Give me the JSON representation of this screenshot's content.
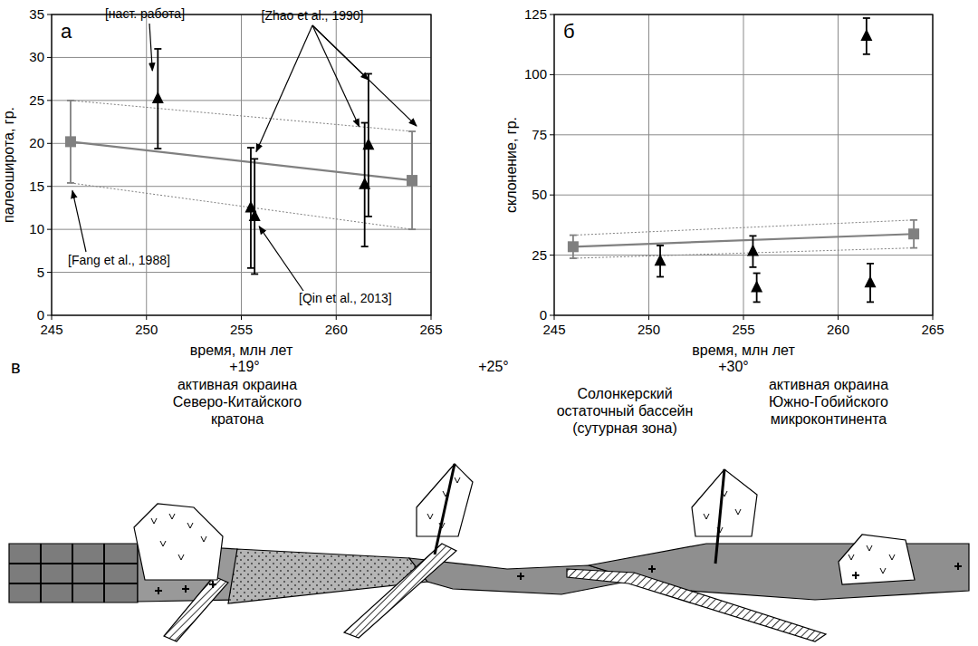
{
  "chart_data": [
    {
      "type": "scatter",
      "panel_label": "а",
      "xlabel": "время, млн лет",
      "ylabel": "палеоширота, гр.",
      "xlim": [
        245,
        265
      ],
      "xticks": [
        245,
        250,
        255,
        260,
        265
      ],
      "ylim": [
        0,
        35
      ],
      "yticks": [
        0,
        5,
        10,
        15,
        20,
        25,
        30,
        35
      ],
      "grid": true,
      "series": [
        {
          "type": "line",
          "marker": "square",
          "color": "#808080",
          "x": [
            246,
            264
          ],
          "values": [
            20.2,
            15.7
          ],
          "errors": [
            4.8,
            5.7
          ]
        },
        {
          "type": "scatter",
          "marker": "triangle",
          "color": "#000000",
          "x": [
            250.6,
            255.5,
            255.7,
            261.5,
            261.7
          ],
          "values": [
            25.2,
            12.5,
            11.5,
            15.2,
            19.8
          ],
          "errors": [
            5.8,
            7.0,
            6.7,
            7.2,
            8.3
          ]
        }
      ],
      "annotations": [
        "[наст. работа]",
        "[Zhao et al., 1990]",
        "[Fang et al., 1988]",
        "[Qin et al., 2013]"
      ]
    },
    {
      "type": "scatter",
      "panel_label": "б",
      "xlabel": "время, млн лет",
      "ylabel": "склонение, гр.",
      "xlim": [
        245,
        265
      ],
      "xticks": [
        245,
        250,
        255,
        260,
        265
      ],
      "ylim": [
        0,
        125
      ],
      "yticks": [
        0,
        25,
        50,
        75,
        100,
        125
      ],
      "grid": true,
      "series": [
        {
          "type": "line",
          "marker": "square",
          "color": "#808080",
          "x": [
            246,
            264
          ],
          "values": [
            28.5,
            33.8
          ],
          "errors": [
            4.8,
            5.8
          ]
        },
        {
          "type": "scatter",
          "marker": "triangle",
          "color": "#000000",
          "x": [
            250.6,
            255.5,
            255.7,
            261.5,
            261.7
          ],
          "values": [
            22.5,
            26.5,
            11.5,
            116,
            13.5
          ],
          "errors": [
            6.5,
            6.5,
            6.0,
            7.5,
            8.0
          ]
        }
      ]
    }
  ],
  "diagram": {
    "panel_label": "в",
    "latitudes": [
      "+19°",
      "+25°",
      "+30°"
    ],
    "labels": [
      "активная окраина Северо-Китайского кратона",
      "Солонкерский остаточный бассейн (сутурная зона)",
      "активная окраина Южно-Гобийского микроконтинента"
    ]
  }
}
